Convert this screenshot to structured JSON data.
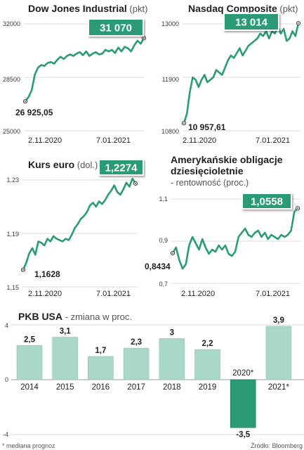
{
  "chart_data": [
    {
      "id": "dow",
      "type": "line",
      "title": "Dow Jones Industrial",
      "unit": "(pkt)",
      "subtitle": "",
      "yticks": [
        "32000",
        "28500",
        "25000"
      ],
      "ylim": [
        25000,
        32000
      ],
      "xlabels": [
        "2.11.2020",
        "7.01.2021"
      ],
      "start_label": "26 925,05",
      "last_label": "31 070",
      "values": [
        26925,
        27200,
        27650,
        28700,
        29150,
        29300,
        29250,
        29450,
        29500,
        29400,
        29650,
        29850,
        29700,
        29900,
        30000,
        29900,
        30050,
        30150,
        29950,
        30200,
        29900,
        30050,
        30150,
        30000,
        30050,
        30300,
        30200,
        30300,
        30100,
        30450,
        30200,
        30500,
        30400,
        30200,
        30600,
        30900,
        30700,
        31070
      ]
    },
    {
      "id": "nasdaq",
      "type": "line",
      "title": "Nasdaq Composite",
      "unit": "(pkt)",
      "subtitle": "",
      "yticks": [
        "13000",
        "11900",
        "10800"
      ],
      "ylim": [
        10800,
        13000
      ],
      "xlabels": [
        "2.11.2020",
        "7.01.2021"
      ],
      "start_label": "10 957,61",
      "last_label": "13 014",
      "values": [
        10957,
        11150,
        11600,
        11900,
        11850,
        11700,
        11850,
        11950,
        11800,
        11850,
        11900,
        12050,
        12000,
        11950,
        12100,
        12250,
        12350,
        12300,
        12400,
        12500,
        12350,
        12450,
        12550,
        12600,
        12650,
        12700,
        12800,
        12750,
        12850,
        12700,
        12850,
        12800,
        12950,
        12800,
        12900,
        12650,
        12700,
        12850,
        12750,
        13014
      ]
    },
    {
      "id": "eur",
      "type": "line",
      "title": "Kurs euro",
      "unit": "(dol.)",
      "subtitle": "",
      "yticks": [
        "1,23",
        "1,19",
        "1,15"
      ],
      "ylim": [
        1.15,
        1.23
      ],
      "xlabels": [
        "2.11.2020",
        "7.01.2021"
      ],
      "start_label": "1,1628",
      "last_label": "1,2274",
      "values": [
        1.1628,
        1.168,
        1.175,
        1.179,
        1.174,
        1.184,
        1.183,
        1.181,
        1.186,
        1.184,
        1.188,
        1.186,
        1.185,
        1.184,
        1.186,
        1.185,
        1.189,
        1.194,
        1.197,
        1.201,
        1.203,
        1.206,
        1.211,
        1.213,
        1.21,
        1.214,
        1.212,
        1.215,
        1.219,
        1.222,
        1.226,
        1.221,
        1.219,
        1.223,
        1.228,
        1.225,
        1.231,
        1.2274
      ]
    },
    {
      "id": "bonds",
      "type": "line",
      "title": "Amerykańskie obligacje",
      "title2": "dziesięcioletnie",
      "unit": "",
      "subtitle": "- rentowność (proc.)",
      "yticks": [
        "1,1",
        "0,9",
        "0,7"
      ],
      "ylim": [
        0.7,
        1.1
      ],
      "xlabels": [
        "2.11.2020",
        "7.01.2021"
      ],
      "start_label": "0,8434",
      "last_label": "1,0558",
      "values": [
        0.8434,
        0.87,
        0.81,
        0.77,
        0.79,
        0.88,
        0.92,
        0.89,
        0.86,
        0.91,
        0.87,
        0.84,
        0.86,
        0.85,
        0.88,
        0.86,
        0.88,
        0.84,
        0.83,
        0.85,
        0.92,
        0.94,
        0.96,
        0.93,
        0.92,
        0.94,
        0.95,
        0.92,
        0.94,
        0.91,
        0.93,
        0.92,
        0.91,
        0.93,
        0.92,
        0.93,
        0.95,
        1.04,
        1.0558
      ]
    },
    {
      "id": "gdp",
      "type": "bar",
      "title": "PKB USA",
      "unit": "- zmiana w proc.",
      "yticks": [
        "4",
        "0",
        "-4"
      ],
      "ylim": [
        -4,
        4
      ],
      "categories": [
        "2014",
        "2015",
        "2016",
        "2017",
        "2018",
        "2019",
        "2020*",
        "2021*"
      ],
      "values": [
        2.5,
        3.1,
        1.7,
        2.3,
        3.0,
        2.2,
        -3.5,
        3.9
      ],
      "value_labels": [
        "2,5",
        "3,1",
        "1,7",
        "2,3",
        "3",
        "2,2",
        "-3,5",
        "3,9"
      ]
    }
  ],
  "footer": {
    "note": "* mediana prognoz",
    "source": "Źródło: Bloomberg"
  },
  "colors": {
    "line": "#2a9a77",
    "label_box": "#2a9a77",
    "bar": "#a9d9c6",
    "bar_negative": "#2a9a77",
    "grid": "#d0d0d0"
  }
}
